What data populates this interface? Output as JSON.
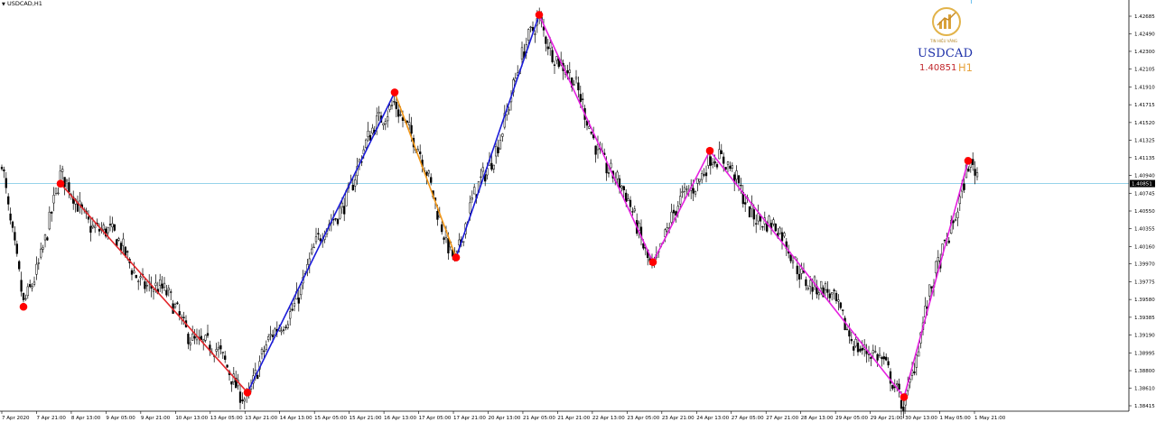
{
  "header": {
    "symbol_label": "USDCAD,H1"
  },
  "logo": {
    "brand": "TIN HIỆU VÀNG",
    "ticker": "USDCAD",
    "price": "1.40851",
    "timeframe": "H1"
  },
  "colors": {
    "zigzag_red": "#e3262b",
    "zigzag_blue": "#1a1ad8",
    "zigzag_orange": "#f29718",
    "zigzag_magenta": "#e520e0",
    "pivot": "#ff0000",
    "price_line": "#87cde7",
    "candle": "#000000"
  },
  "chart_data": {
    "type": "candlestick",
    "symbol": "USDCAD",
    "timeframe": "H1",
    "current_price": 1.40851,
    "current_price_label": "1.40851",
    "ylim": [
      1.38415,
      1.4288
    ],
    "y_ticks": [
      "1.42685",
      "1.42490",
      "1.42300",
      "1.42105",
      "1.41910",
      "1.41715",
      "1.41520",
      "1.41325",
      "1.41135",
      "1.40940",
      "1.40745",
      "1.40550",
      "1.40355",
      "1.40160",
      "1.39970",
      "1.39775",
      "1.39580",
      "1.39385",
      "1.39190",
      "1.38995",
      "1.38800",
      "1.38610",
      "1.38415"
    ],
    "x_ticks": [
      "7 Apr 2020",
      "7 Apr 21:00",
      "8 Apr 13:00",
      "9 Apr 05:00",
      "9 Apr 21:00",
      "10 Apr 13:00",
      "13 Apr 05:00",
      "13 Apr 21:00",
      "14 Apr 13:00",
      "15 Apr 05:00",
      "15 Apr 21:00",
      "16 Apr 13:00",
      "17 Apr 05:00",
      "17 Apr 21:00",
      "20 Apr 13:00",
      "21 Apr 05:00",
      "21 Apr 21:00",
      "22 Apr 13:00",
      "23 Apr 05:00",
      "23 Apr 21:00",
      "24 Apr 13:00",
      "27 Apr 05:00",
      "27 Apr 21:00",
      "28 Apr 13:00",
      "29 Apr 05:00",
      "29 Apr 21:00",
      "30 Apr 13:00",
      "1 May 05:00",
      "1 May 21:00"
    ],
    "zigzag_pivots": [
      {
        "time": "7 Apr 12:00",
        "price": 1.395
      },
      {
        "time": "7 Apr 23:00",
        "price": 1.4085
      },
      {
        "time": "13 Apr 20:00",
        "price": 1.3856
      },
      {
        "time": "16 Apr 13:00",
        "price": 1.4185
      },
      {
        "time": "17 Apr 05:00",
        "price": 1.4004
      },
      {
        "time": "21 Apr 08:00",
        "price": 1.427
      },
      {
        "time": "23 Apr 05:00",
        "price": 1.3999
      },
      {
        "time": "24 Apr 05:00",
        "price": 1.4121
      },
      {
        "time": "30 Apr 10:00",
        "price": 1.3851
      },
      {
        "time": "1 May 17:00",
        "price": 1.411
      }
    ],
    "zigzag_segments": [
      {
        "from": 1,
        "to": 2,
        "color": "red"
      },
      {
        "from": 2,
        "to": 3,
        "color": "blue"
      },
      {
        "from": 3,
        "to": 4,
        "color": "orange"
      },
      {
        "from": 4,
        "to": 5,
        "color": "blue"
      },
      {
        "from": 5,
        "to": 6,
        "color": "magenta"
      },
      {
        "from": 6,
        "to": 7,
        "color": "magenta"
      },
      {
        "from": 7,
        "to": 8,
        "color": "magenta"
      },
      {
        "from": 8,
        "to": 9,
        "color": "magenta"
      }
    ]
  }
}
